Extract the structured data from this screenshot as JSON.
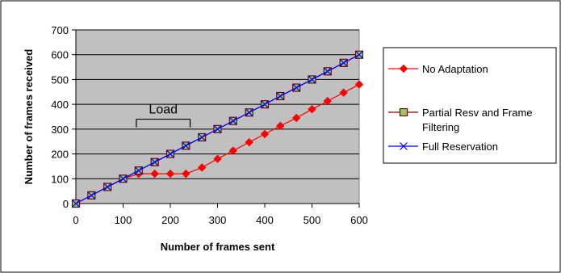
{
  "chart_data": {
    "type": "line",
    "title": "",
    "xlabel": "Number of frames sent",
    "ylabel": "Number of frames received",
    "xlim": [
      0,
      600
    ],
    "ylim": [
      0,
      700
    ],
    "xticks": [
      0,
      100,
      200,
      300,
      400,
      500,
      600
    ],
    "yticks": [
      0,
      100,
      200,
      300,
      400,
      500,
      600,
      700
    ],
    "grid": "horizontal",
    "legend_position": "right",
    "plot_background": "#c0c0c0",
    "x": [
      0,
      33,
      67,
      100,
      133,
      167,
      200,
      233,
      267,
      300,
      333,
      367,
      400,
      433,
      467,
      500,
      533,
      567,
      600
    ],
    "series": [
      {
        "name": "No Adaptation",
        "color": "#ff0000",
        "marker": "diamond",
        "values": [
          0,
          33,
          67,
          100,
          120,
          120,
          120,
          120,
          145,
          180,
          213,
          247,
          280,
          313,
          345,
          380,
          413,
          447,
          480
        ]
      },
      {
        "name": "Partial Resv and Frame Filtering",
        "color": "#800000",
        "marker": "square",
        "marker_fill": "#99cc66",
        "values": [
          0,
          33,
          67,
          100,
          133,
          167,
          200,
          233,
          267,
          300,
          333,
          367,
          400,
          433,
          467,
          500,
          533,
          567,
          600
        ]
      },
      {
        "name": "Full Reservation",
        "color": "#0000ff",
        "marker": "x",
        "values": [
          0,
          33,
          67,
          100,
          133,
          167,
          200,
          233,
          267,
          300,
          333,
          367,
          400,
          433,
          467,
          500,
          533,
          567,
          600
        ]
      }
    ],
    "annotations": [
      {
        "text": "Load",
        "x_from": 128,
        "x_to": 242,
        "y": 340
      }
    ]
  }
}
